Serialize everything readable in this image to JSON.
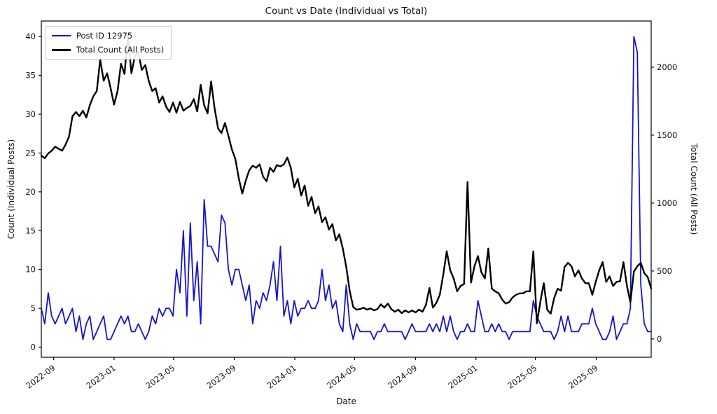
{
  "chart_data": {
    "type": "line",
    "title": "Count vs Date (Individual vs Total)",
    "xlabel": "Date",
    "ylabel_left": "Count (Individual Posts)",
    "ylabel_right": "Total Count (All Posts)",
    "legend_position": "upper-left",
    "grid": false,
    "x_start": "2022-08-07",
    "x_step_days": 7,
    "x_ticks": [
      "2022-09",
      "2023-01",
      "2023-05",
      "2023-09",
      "2024-01",
      "2024-05",
      "2024-09",
      "2025-01",
      "2025-05",
      "2025-09"
    ],
    "y_left": {
      "ticks": [
        0,
        5,
        10,
        15,
        20,
        25,
        30,
        35,
        40
      ],
      "lim": [
        -1.3,
        42.0
      ]
    },
    "y_right": {
      "ticks": [
        0,
        500,
        1000,
        1500,
        2000
      ],
      "lim": [
        -135,
        2340
      ]
    },
    "series": [
      {
        "name": "Post ID 12975",
        "axis": "left",
        "color": "#1414cc",
        "width": 1.8,
        "values": [
          5,
          3,
          7,
          4,
          3,
          4,
          5,
          3,
          4,
          5,
          2,
          4,
          1,
          3,
          4,
          1,
          2,
          3,
          4,
          1,
          1,
          2,
          3,
          4,
          3,
          4,
          2,
          2,
          3,
          2,
          1,
          2,
          4,
          3,
          5,
          4,
          5,
          5,
          4,
          10,
          7,
          15,
          4,
          16,
          6,
          11,
          3,
          19,
          13,
          13,
          12,
          11,
          17,
          16,
          10,
          8,
          10,
          10,
          8,
          6,
          8,
          3,
          6,
          5,
          7,
          6,
          8,
          11,
          6,
          13,
          4,
          6,
          3,
          6,
          4,
          5,
          5,
          6,
          5,
          5,
          6,
          10,
          6,
          8,
          5,
          6,
          3,
          2,
          8,
          3,
          1,
          3,
          2,
          2,
          2,
          2,
          1,
          2,
          2,
          3,
          2,
          2,
          2,
          2,
          2,
          1,
          2,
          3,
          2,
          2,
          2,
          2,
          3,
          2,
          3,
          2,
          4,
          2,
          4,
          2,
          1,
          2,
          2,
          3,
          2,
          2,
          6,
          4,
          2,
          2,
          3,
          2,
          3,
          2,
          2,
          1,
          2,
          2,
          2,
          2,
          2,
          2,
          6,
          4,
          3,
          2,
          2,
          2,
          1,
          2,
          4,
          2,
          4,
          2,
          2,
          2,
          3,
          3,
          3,
          5,
          3,
          2,
          1,
          1,
          2,
          4,
          1,
          2,
          3,
          3,
          5,
          40,
          38,
          8,
          3,
          2,
          2
        ]
      },
      {
        "name": "Total Count (All Posts)",
        "axis": "right",
        "color": "#000000",
        "width": 2.4,
        "values": [
          1350,
          1330,
          1365,
          1385,
          1415,
          1400,
          1385,
          1430,
          1490,
          1640,
          1670,
          1640,
          1680,
          1630,
          1720,
          1785,
          1825,
          2055,
          1900,
          1955,
          1845,
          1725,
          1825,
          2025,
          1950,
          2235,
          1955,
          2080,
          2110,
          1980,
          2015,
          1900,
          1825,
          1845,
          1740,
          1785,
          1710,
          1670,
          1740,
          1665,
          1745,
          1680,
          1700,
          1715,
          1765,
          1675,
          1870,
          1720,
          1660,
          1895,
          1700,
          1550,
          1515,
          1590,
          1495,
          1395,
          1325,
          1180,
          1070,
          1165,
          1240,
          1275,
          1260,
          1285,
          1195,
          1160,
          1260,
          1230,
          1280,
          1270,
          1285,
          1335,
          1260,
          1115,
          1180,
          1055,
          1130,
          980,
          1045,
          925,
          975,
          860,
          895,
          805,
          845,
          725,
          770,
          665,
          530,
          355,
          235,
          215,
          220,
          230,
          215,
          225,
          210,
          220,
          255,
          230,
          260,
          220,
          200,
          215,
          190,
          210,
          195,
          210,
          195,
          215,
          200,
          250,
          375,
          230,
          265,
          325,
          475,
          645,
          505,
          445,
          350,
          390,
          405,
          1155,
          415,
          535,
          610,
          490,
          445,
          665,
          370,
          350,
          335,
          290,
          260,
          270,
          305,
          325,
          335,
          335,
          350,
          350,
          645,
          115,
          270,
          410,
          215,
          185,
          300,
          370,
          355,
          530,
          560,
          535,
          460,
          505,
          445,
          410,
          410,
          325,
          420,
          505,
          565,
          420,
          460,
          390,
          420,
          425,
          565,
          390,
          270,
          495,
          535,
          560,
          485,
          455,
          370
        ]
      }
    ]
  }
}
